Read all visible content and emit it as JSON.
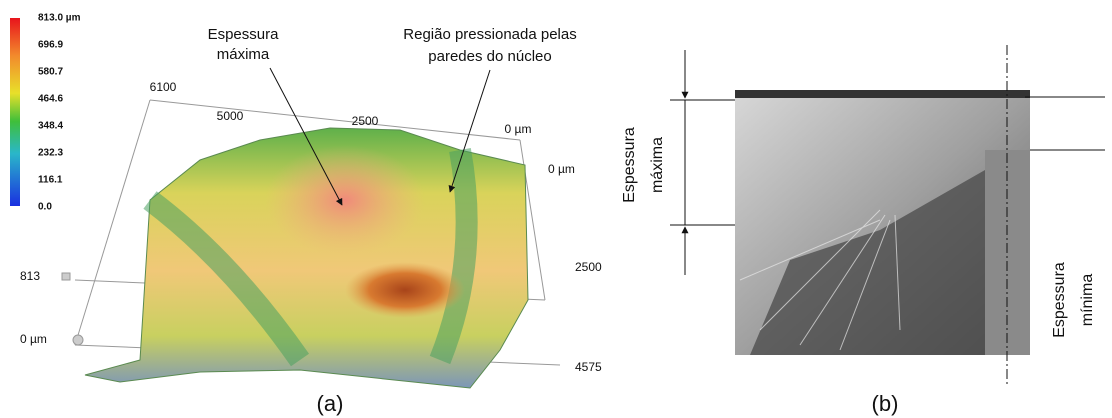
{
  "panel_a": {
    "colorbar_labels": [
      "813.0 µm",
      "696.9",
      "580.7",
      "464.6",
      "348.4",
      "232.3",
      "116.1",
      "0.0"
    ],
    "annotations": {
      "max_thickness": [
        "Espessura",
        "máxima"
      ],
      "pressed_region": [
        "Região pressionada pelas",
        "paredes do núcleo"
      ]
    },
    "axis_x_labels": [
      "6100",
      "5000",
      "2500",
      "0 µm"
    ],
    "axis_y_labels": [
      "0 µm",
      "2500",
      "4575"
    ],
    "axis_z_labels": [
      "813",
      "0 µm"
    ],
    "caption": "(a)"
  },
  "panel_b": {
    "label_max": [
      "Espessura",
      "máxima"
    ],
    "label_min": [
      "Espessura",
      "mínima"
    ],
    "caption": "(b)"
  }
}
